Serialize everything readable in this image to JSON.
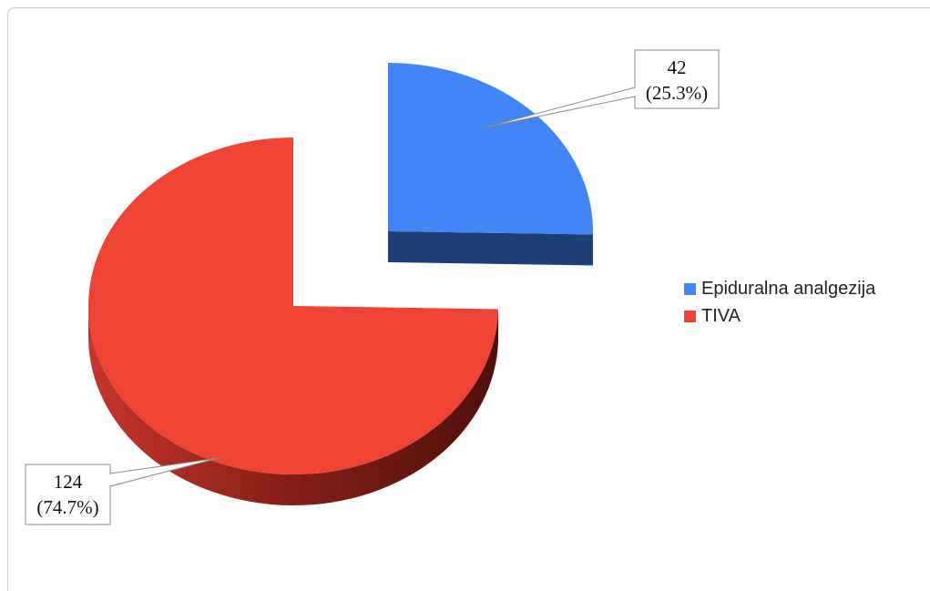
{
  "chart_data": {
    "type": "pie",
    "style": "3d-exploded",
    "title": "",
    "legend_position": "right",
    "slices": [
      {
        "name": "Epiduralna analgezija",
        "value": 42,
        "percent_label": "(25.3%)",
        "value_label": "42",
        "color": "#4285f4",
        "side_color": "#1e3f75"
      },
      {
        "name": "TIVA",
        "value": 124,
        "percent_label": "(74.7%)",
        "value_label": "124",
        "color": "#ee4335",
        "side_color": "#8e231a"
      }
    ]
  }
}
